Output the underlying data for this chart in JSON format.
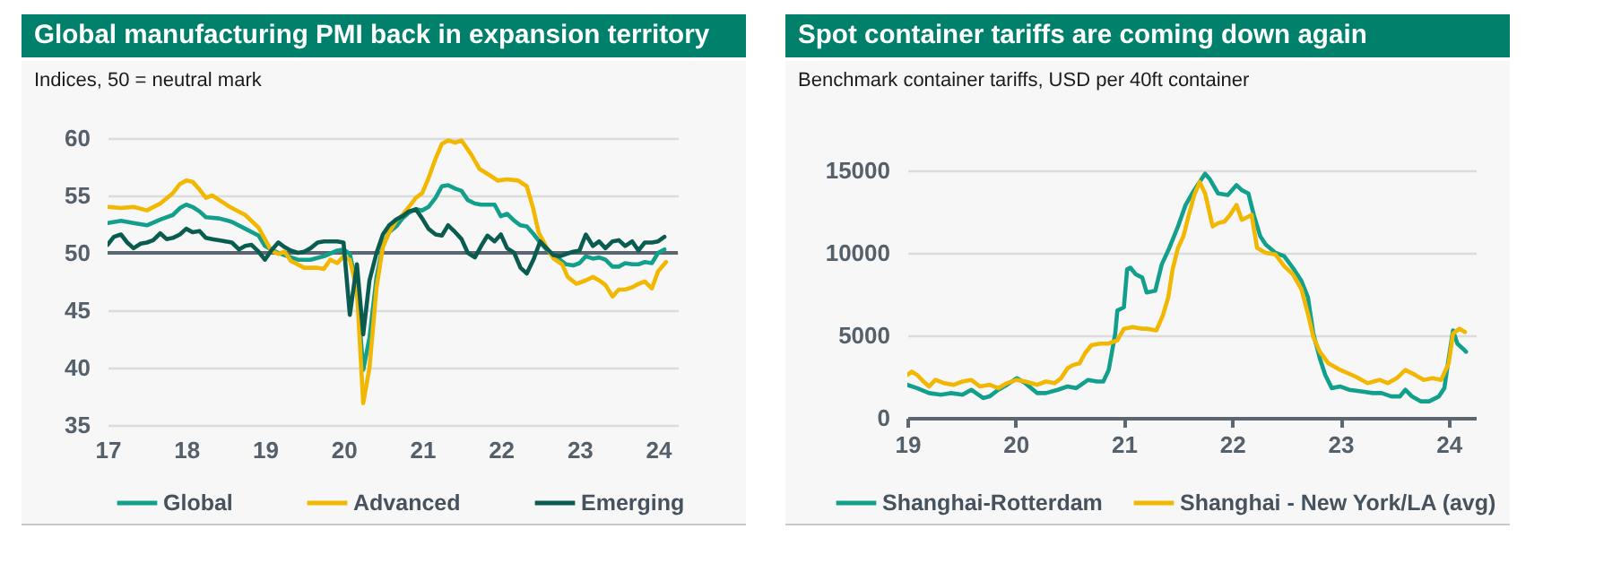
{
  "chart_data": [
    {
      "type": "line",
      "title": "Global manufacturing PMI back in expansion territory",
      "subtitle": "Indices, 50 = neutral mark",
      "xlim": [
        17,
        24.25
      ],
      "xticks": [
        17,
        18,
        19,
        20,
        21,
        22,
        23,
        24
      ],
      "ylim": [
        35,
        60
      ],
      "yticks": [
        35,
        40,
        45,
        50,
        55,
        60
      ],
      "grid": "y",
      "legend": "bottom",
      "ref_lines": [
        {
          "axis": "y",
          "value": 50,
          "color": "#5b6670"
        }
      ],
      "series": [
        {
          "name": "Global",
          "color": "#12a08c",
          "x": [
            17.0,
            17.17,
            17.33,
            17.5,
            17.67,
            17.83,
            17.92,
            18.0,
            18.08,
            18.17,
            18.25,
            18.42,
            18.58,
            18.75,
            18.92,
            19.0,
            19.08,
            19.17,
            19.25,
            19.42,
            19.58,
            19.75,
            19.92,
            20.0,
            20.08,
            20.17,
            20.25,
            20.33,
            20.42,
            20.5,
            20.58,
            20.67,
            20.75,
            20.83,
            20.92,
            21.0,
            21.08,
            21.17,
            21.25,
            21.33,
            21.42,
            21.5,
            21.58,
            21.67,
            21.75,
            21.83,
            21.92,
            22.0,
            22.08,
            22.17,
            22.25,
            22.33,
            22.42,
            22.5,
            22.58,
            22.67,
            22.75,
            22.83,
            22.92,
            23.0,
            23.08,
            23.17,
            23.25,
            23.33,
            23.42,
            23.5,
            23.58,
            23.67,
            23.75,
            23.83,
            23.92,
            24.0,
            24.08
          ],
          "values": [
            52.6,
            52.8,
            52.6,
            52.4,
            52.9,
            53.3,
            53.9,
            54.2,
            54.0,
            53.6,
            53.1,
            53.0,
            52.7,
            52.1,
            51.5,
            50.6,
            50.3,
            50.0,
            49.8,
            49.4,
            49.4,
            49.7,
            50.2,
            50.3,
            49.9,
            47.1,
            39.8,
            42.6,
            47.9,
            50.6,
            51.8,
            52.3,
            53.0,
            53.5,
            53.8,
            53.7,
            54.0,
            54.8,
            55.8,
            55.9,
            55.6,
            55.4,
            54.6,
            54.3,
            54.2,
            54.2,
            54.2,
            53.2,
            53.4,
            52.8,
            52.4,
            52.3,
            51.6,
            50.9,
            50.3,
            49.8,
            49.4,
            49.0,
            48.9,
            49.1,
            49.7,
            49.5,
            49.6,
            49.4,
            48.8,
            48.8,
            49.1,
            49.0,
            49.0,
            49.2,
            49.1,
            50.0,
            50.3
          ]
        },
        {
          "name": "Advanced",
          "color": "#f2b700",
          "x": [
            17.0,
            17.17,
            17.33,
            17.5,
            17.67,
            17.83,
            17.92,
            18.0,
            18.08,
            18.17,
            18.25,
            18.33,
            18.42,
            18.58,
            18.75,
            18.92,
            19.0,
            19.08,
            19.17,
            19.25,
            19.33,
            19.5,
            19.67,
            19.75,
            19.83,
            19.92,
            20.0,
            20.08,
            20.17,
            20.25,
            20.33,
            20.42,
            20.5,
            20.58,
            20.67,
            20.75,
            20.83,
            20.92,
            21.0,
            21.08,
            21.17,
            21.25,
            21.33,
            21.42,
            21.5,
            21.62,
            21.73,
            21.85,
            21.96,
            22.08,
            22.22,
            22.33,
            22.41,
            22.48,
            22.58,
            22.67,
            22.78,
            22.85,
            22.96,
            23.08,
            23.17,
            23.25,
            23.33,
            23.42,
            23.5,
            23.58,
            23.67,
            23.75,
            23.83,
            23.92,
            24.0,
            24.1
          ],
          "values": [
            54.0,
            53.9,
            54.0,
            53.7,
            54.3,
            55.2,
            56.0,
            56.3,
            56.2,
            55.5,
            54.8,
            55.0,
            54.6,
            53.9,
            53.3,
            52.2,
            51.2,
            50.2,
            49.9,
            50.1,
            49.3,
            48.7,
            48.7,
            48.6,
            49.4,
            49.1,
            49.7,
            49.4,
            46.8,
            36.9,
            40.0,
            47.0,
            50.5,
            51.8,
            52.8,
            53.3,
            54.0,
            54.8,
            55.2,
            56.5,
            58.2,
            59.5,
            59.8,
            59.6,
            59.8,
            58.6,
            57.3,
            56.8,
            56.3,
            56.4,
            56.3,
            55.8,
            53.9,
            51.8,
            50.5,
            49.5,
            49.0,
            47.9,
            47.3,
            47.6,
            47.9,
            47.6,
            47.2,
            46.2,
            46.8,
            46.8,
            47.0,
            47.3,
            47.5,
            46.9,
            48.4,
            49.2
          ]
        },
        {
          "name": "Emerging",
          "color": "#0b5c50",
          "x": [
            17.0,
            17.08,
            17.17,
            17.25,
            17.33,
            17.42,
            17.5,
            17.58,
            17.67,
            17.75,
            17.83,
            17.92,
            18.0,
            18.08,
            18.17,
            18.25,
            18.33,
            18.42,
            18.5,
            18.58,
            18.67,
            18.75,
            18.83,
            18.92,
            19.0,
            19.08,
            19.17,
            19.25,
            19.33,
            19.42,
            19.5,
            19.58,
            19.67,
            19.75,
            19.83,
            19.92,
            20.0,
            20.08,
            20.17,
            20.25,
            20.33,
            20.42,
            20.5,
            20.58,
            20.67,
            20.75,
            20.83,
            20.92,
            21.0,
            21.08,
            21.17,
            21.25,
            21.33,
            21.42,
            21.5,
            21.58,
            21.67,
            21.75,
            21.83,
            21.92,
            22.0,
            22.08,
            22.17,
            22.25,
            22.33,
            22.42,
            22.5,
            22.58,
            22.67,
            22.75,
            22.83,
            22.92,
            23.0,
            23.08,
            23.17,
            23.25,
            23.33,
            23.42,
            23.5,
            23.58,
            23.67,
            23.75,
            23.83,
            23.92,
            24.0,
            24.08
          ],
          "values": [
            50.7,
            51.4,
            51.6,
            50.9,
            50.4,
            50.8,
            50.9,
            51.1,
            51.7,
            51.2,
            51.3,
            51.6,
            52.1,
            51.8,
            51.9,
            51.3,
            51.2,
            51.1,
            51.0,
            50.9,
            50.3,
            50.6,
            50.7,
            50.1,
            49.4,
            50.2,
            50.9,
            50.5,
            50.2,
            50.0,
            50.1,
            50.4,
            50.9,
            51.0,
            51.0,
            51.0,
            50.9,
            44.6,
            49.0,
            42.9,
            47.6,
            50.0,
            51.6,
            52.4,
            52.9,
            53.2,
            53.6,
            53.8,
            53.0,
            52.1,
            51.6,
            51.5,
            52.4,
            51.8,
            51.2,
            50.0,
            49.6,
            50.6,
            51.5,
            51.0,
            51.6,
            50.4,
            50.0,
            48.7,
            48.2,
            49.5,
            51.0,
            50.4,
            49.8,
            49.7,
            49.9,
            50.1,
            50.2,
            51.6,
            50.6,
            51.0,
            50.4,
            51.0,
            51.1,
            50.6,
            51.0,
            50.2,
            50.9,
            50.9,
            51.0,
            51.4
          ]
        }
      ]
    },
    {
      "type": "line",
      "title": "Spot container tariffs are coming down again",
      "subtitle": "Benchmark container tariffs, USD per 40ft container",
      "xlim": [
        19,
        24.25
      ],
      "xticks": [
        19,
        20,
        21,
        22,
        23,
        24
      ],
      "ylim": [
        0,
        15000
      ],
      "yticks": [
        0,
        5000,
        10000,
        15000
      ],
      "grid": "y",
      "legend": "bottom",
      "series": [
        {
          "name": "Shanghai-Rotterdam",
          "color": "#12a08c",
          "x": [
            19.0,
            19.09,
            19.2,
            19.31,
            19.4,
            19.51,
            19.59,
            19.7,
            19.76,
            19.84,
            19.92,
            20.01,
            20.09,
            20.2,
            20.28,
            20.39,
            20.48,
            20.56,
            20.67,
            20.75,
            20.81,
            20.86,
            20.92,
            20.94,
            21.0,
            21.03,
            21.06,
            21.11,
            21.17,
            21.21,
            21.29,
            21.35,
            21.42,
            21.5,
            21.57,
            21.64,
            21.69,
            21.75,
            21.79,
            21.87,
            21.96,
            22.04,
            22.09,
            22.15,
            22.2,
            22.26,
            22.31,
            22.4,
            22.48,
            22.56,
            22.64,
            22.7,
            22.75,
            22.81,
            22.86,
            22.92,
            23.0,
            23.08,
            23.19,
            23.3,
            23.38,
            23.47,
            23.55,
            23.6,
            23.66,
            23.74,
            23.82,
            23.91,
            23.96,
            24.0,
            24.04,
            24.08,
            24.13,
            24.16
          ],
          "values": [
            2000,
            1800,
            1500,
            1400,
            1500,
            1400,
            1700,
            1200,
            1300,
            1700,
            2000,
            2400,
            2100,
            1500,
            1500,
            1700,
            1900,
            1800,
            2300,
            2200,
            2200,
            2900,
            5100,
            6500,
            6700,
            9000,
            9100,
            8700,
            8500,
            7600,
            7700,
            9300,
            10300,
            11600,
            12900,
            13700,
            14200,
            14800,
            14500,
            13600,
            13500,
            14100,
            13800,
            13600,
            12300,
            11000,
            10500,
            10000,
            9800,
            9100,
            8300,
            7300,
            5100,
            3600,
            2600,
            1800,
            1900,
            1700,
            1600,
            1500,
            1500,
            1300,
            1300,
            1700,
            1300,
            1000,
            1000,
            1300,
            1800,
            3600,
            5300,
            4500,
            4200,
            4000
          ]
        },
        {
          "name": "Shanghai - New York/LA (avg)",
          "color": "#f2b700",
          "x": [
            19.0,
            19.04,
            19.09,
            19.15,
            19.2,
            19.26,
            19.34,
            19.43,
            19.51,
            19.59,
            19.67,
            19.76,
            19.84,
            19.92,
            20.01,
            20.09,
            20.2,
            20.28,
            20.36,
            20.42,
            20.48,
            20.53,
            20.59,
            20.64,
            20.7,
            20.78,
            20.86,
            20.94,
            21.0,
            21.08,
            21.17,
            21.21,
            21.3,
            21.36,
            21.41,
            21.45,
            21.5,
            21.55,
            21.6,
            21.65,
            21.7,
            21.75,
            21.82,
            21.87,
            21.93,
            21.98,
            22.04,
            22.09,
            22.18,
            22.23,
            22.31,
            22.4,
            22.48,
            22.56,
            22.64,
            22.7,
            22.75,
            22.81,
            22.89,
            23.0,
            23.14,
            23.25,
            23.36,
            23.44,
            23.52,
            23.6,
            23.69,
            23.77,
            23.85,
            23.93,
            24.0,
            24.04,
            24.1,
            24.15
          ],
          "values": [
            2600,
            2800,
            2600,
            2200,
            1900,
            2300,
            2100,
            2000,
            2200,
            2300,
            1900,
            2000,
            1800,
            2100,
            2300,
            2200,
            2000,
            2200,
            2100,
            2400,
            3000,
            3200,
            3300,
            3900,
            4400,
            4500,
            4500,
            4700,
            5400,
            5500,
            5400,
            5400,
            5300,
            6200,
            7300,
            9000,
            10300,
            11000,
            12300,
            13500,
            14300,
            13600,
            11600,
            11800,
            11900,
            12300,
            12900,
            12000,
            12300,
            10300,
            10000,
            9900,
            9200,
            8700,
            7800,
            6300,
            4900,
            4000,
            3300,
            2900,
            2500,
            2100,
            2300,
            2100,
            2400,
            2900,
            2600,
            2300,
            2400,
            2300,
            3300,
            5100,
            5400,
            5200
          ]
        }
      ]
    }
  ]
}
